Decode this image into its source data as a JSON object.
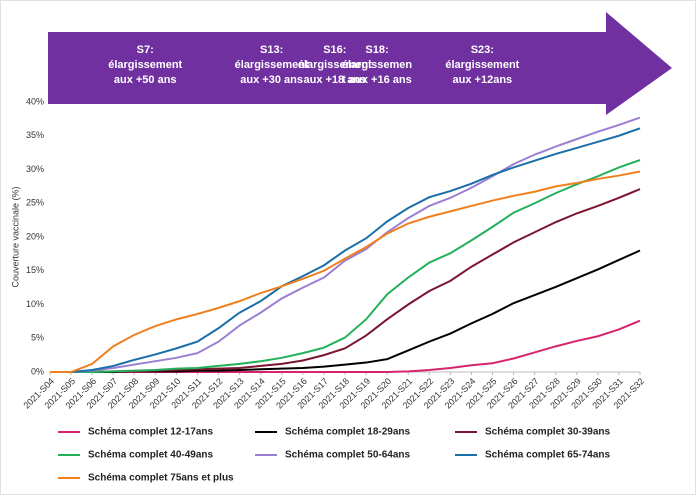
{
  "chart_data": {
    "type": "line",
    "y_label": "Couverture vaccinale (%)",
    "annotations": [
      {
        "lines": [
          "S7:",
          "élargissement",
          "aux +50  ans"
        ],
        "category": "2021-S07"
      },
      {
        "lines": [
          "S13:",
          "élargissement",
          "aux +30 ans"
        ],
        "category": "2021-S13"
      },
      {
        "lines": [
          "S16:",
          "élargissement",
          "aux +18 ans"
        ],
        "category": "2021-S16"
      },
      {
        "lines": [
          "S18:",
          "élargissemen",
          "t aux +16 ans"
        ],
        "category": "2021-S18"
      },
      {
        "lines": [
          "S23:",
          "élargissement",
          "aux +12ans"
        ],
        "category": "2021-S23"
      }
    ],
    "categories": [
      "2021-S04",
      "2021-S05",
      "2021-S06",
      "2021-S07",
      "2021-S08",
      "2021-S09",
      "2021-S10",
      "2021-S11",
      "2021-S12",
      "2021-S13",
      "2021-S14",
      "2021-S15",
      "2021-S16",
      "2021-S17",
      "2021-S18",
      "2021-S19",
      "2021-S20",
      "2021-S21",
      "2021-S22",
      "2021-S23",
      "2021-S24",
      "2021-S25",
      "2021-S26",
      "2021-S27",
      "2021-S28",
      "2021-S29",
      "2021-S30",
      "2021-S31",
      "2021-S32"
    ],
    "ylim": [
      0,
      40
    ],
    "yticks": [
      {
        "value": 0,
        "label": "0%"
      },
      {
        "value": 5,
        "label": "5%"
      },
      {
        "value": 10,
        "label": "10%"
      },
      {
        "value": 15,
        "label": "15%"
      },
      {
        "value": 20,
        "label": "20%"
      },
      {
        "value": 25,
        "label": "25%"
      },
      {
        "value": 30,
        "label": "30%"
      },
      {
        "value": 35,
        "label": "35%"
      },
      {
        "value": 40,
        "label": "40%"
      }
    ],
    "grid": false,
    "legend": "bottom",
    "series": [
      {
        "name": "Schéma complet 12-17ans",
        "color": "#d6246e",
        "values": [
          0,
          0,
          0,
          0,
          0,
          0,
          0,
          0,
          0,
          0,
          0,
          0,
          0,
          0,
          0,
          0,
          0,
          0.1,
          0.3,
          0.6,
          1,
          1.3,
          2,
          2.9,
          3.8,
          4.6,
          5.3,
          6.3,
          7.6
        ]
      },
      {
        "name": "Schéma complet 18-29ans",
        "color": "#000000",
        "values": [
          0,
          0,
          0,
          0,
          0.1,
          0.1,
          0.1,
          0.2,
          0.2,
          0.3,
          0.4,
          0.5,
          0.6,
          0.8,
          1.1,
          1.4,
          1.9,
          3.2,
          4.5,
          5.7,
          7.2,
          8.6,
          10.2,
          11.4,
          12.6,
          13.9,
          15.2,
          16.6,
          18
        ]
      },
      {
        "name": "Schéma complet 30-39ans",
        "color": "#7b1530",
        "values": [
          0,
          0,
          0,
          0.1,
          0.1,
          0.2,
          0.3,
          0.4,
          0.5,
          0.6,
          0.9,
          1.2,
          1.7,
          2.5,
          3.5,
          5.4,
          7.8,
          10,
          12,
          13.5,
          15.6,
          17.4,
          19.2,
          20.7,
          22.2,
          23.5,
          24.6,
          25.8,
          27.1
        ]
      },
      {
        "name": "Schéma complet 40-49ans",
        "color": "#22b05a",
        "values": [
          0,
          0,
          0,
          0.1,
          0.2,
          0.3,
          0.5,
          0.6,
          0.9,
          1.2,
          1.6,
          2.1,
          2.8,
          3.6,
          5.1,
          7.8,
          11.5,
          14,
          16.2,
          17.6,
          19.5,
          21.5,
          23.6,
          25,
          26.5,
          27.8,
          29,
          30.3,
          31.4
        ]
      },
      {
        "name": "Schéma complet 50-64ans",
        "color": "#9c7fd4",
        "values": [
          0,
          0,
          0.2,
          0.6,
          1.1,
          1.6,
          2.1,
          2.8,
          4.5,
          6.9,
          8.8,
          10.9,
          12.5,
          14,
          16.5,
          18.2,
          20.7,
          22.8,
          24.6,
          25.8,
          27.3,
          29,
          30.8,
          32.2,
          33.4,
          34.5,
          35.6,
          36.6,
          37.7
        ]
      },
      {
        "name": "Schéma complet 65-74ans",
        "color": "#1b6fa8",
        "values": [
          0,
          0,
          0.3,
          0.9,
          1.8,
          2.6,
          3.5,
          4.5,
          6.5,
          8.8,
          10.5,
          12.7,
          14.2,
          15.8,
          18,
          19.8,
          22.3,
          24.3,
          25.9,
          26.8,
          27.9,
          29.2,
          30.3,
          31.3,
          32.3,
          33.2,
          34.1,
          35,
          36.1
        ]
      },
      {
        "name": "Schéma complet 75ans et plus",
        "color": "#f07f1e",
        "values": [
          0,
          0,
          1.2,
          3.8,
          5.5,
          6.8,
          7.8,
          8.6,
          9.5,
          10.5,
          11.7,
          12.7,
          13.8,
          15,
          16.8,
          18.5,
          20.5,
          22,
          23,
          23.8,
          24.6,
          25.4,
          26.1,
          26.7,
          27.5,
          28,
          28.6,
          29.1,
          29.7
        ]
      }
    ]
  }
}
